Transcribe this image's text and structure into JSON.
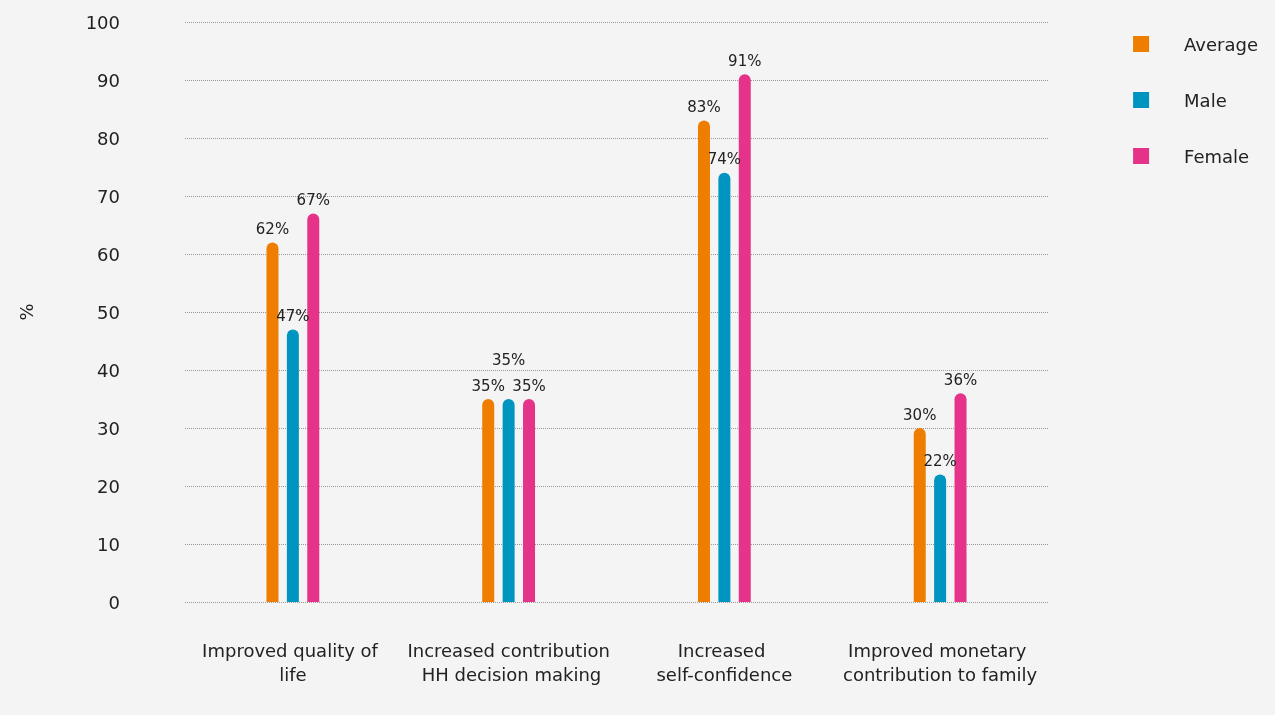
{
  "chart_data": {
    "type": "bar",
    "ylabel": "%",
    "categories": [
      "Improved quality of life",
      "Increased contribution HH decision making",
      "Increased self-confidence",
      "Improved monetary contribution to family"
    ],
    "series": [
      {
        "name": "Average",
        "color": "#ef7d00",
        "values": [
          62,
          35,
          83,
          30
        ],
        "value_labels": [
          "62%",
          "35%",
          "83%",
          "30%"
        ]
      },
      {
        "name": "Male",
        "color": "#0095c0",
        "values": [
          47,
          35,
          74,
          22
        ],
        "value_labels": [
          "47%",
          "35%",
          "74%",
          "22%"
        ]
      },
      {
        "name": "Female",
        "color": "#e6338a",
        "values": [
          67,
          35,
          91,
          36
        ],
        "value_labels": [
          "67%",
          "35%",
          "91%",
          "36%"
        ]
      }
    ],
    "ylim": [
      0,
      100
    ],
    "yticks": [
      0,
      10,
      20,
      30,
      40,
      50,
      60,
      70,
      80,
      90,
      100
    ],
    "grid": "y",
    "legend": "top right"
  }
}
